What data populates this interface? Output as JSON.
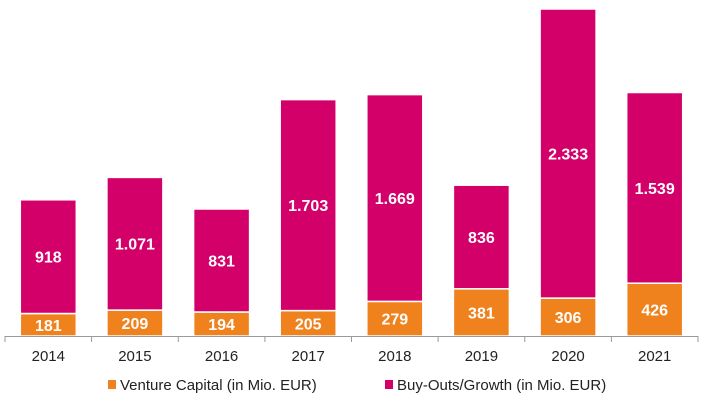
{
  "colors": {
    "venture_capital": "#F0821E",
    "buyouts_growth": "#D4006A",
    "axis": "#9a9a9a",
    "text": "#222222"
  },
  "chart_data": {
    "type": "bar",
    "stacked": true,
    "categories": [
      "2014",
      "2015",
      "2016",
      "2017",
      "2018",
      "2019",
      "2020",
      "2021"
    ],
    "series": [
      {
        "name": "Venture Capital (in Mio. EUR)",
        "values": [
          181,
          209,
          194,
          205,
          279,
          381,
          306,
          426
        ],
        "labels": [
          "181",
          "209",
          "194",
          "205",
          "279",
          "381",
          "306",
          "426"
        ]
      },
      {
        "name": "Buy-Outs/Growth (in Mio. EUR)",
        "values": [
          918,
          1071,
          831,
          1703,
          1669,
          836,
          2333,
          1539
        ],
        "labels": [
          "918",
          "1.071",
          "831",
          "1.703",
          "1.669",
          "836",
          "2.333",
          "1.539"
        ]
      }
    ],
    "legend_position": "bottom",
    "grid": false
  }
}
